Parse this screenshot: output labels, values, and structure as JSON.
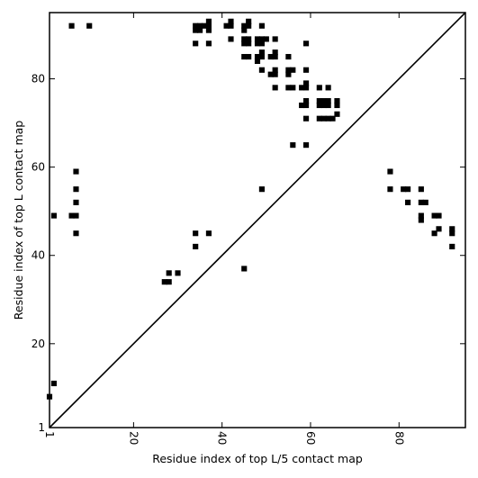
{
  "chart_data": {
    "type": "scatter",
    "title": "",
    "xlabel": "Residue index of top L/5 contact map",
    "ylabel": "Residue index of top L contact map",
    "xlim": [
      1,
      95
    ],
    "ylim": [
      1,
      95
    ],
    "x_ticks": [
      1,
      20,
      40,
      60,
      80
    ],
    "y_ticks": [
      1,
      20,
      40,
      60,
      80
    ],
    "x_tick_labels": [
      "1",
      "20",
      "40",
      "60",
      "80"
    ],
    "y_tick_labels": [
      "1",
      "20",
      "40",
      "60",
      "80"
    ],
    "x_tick_rotation": -90,
    "grid": false,
    "legend": "none",
    "diagonal": {
      "from": [
        1,
        1
      ],
      "to": [
        95,
        95
      ]
    },
    "marker": {
      "shape": "square",
      "color": "#000000"
    },
    "series": [
      {
        "name": "",
        "points": [
          [
            6,
            92
          ],
          [
            10,
            92
          ],
          [
            34,
            91
          ],
          [
            34,
            92
          ],
          [
            35,
            91
          ],
          [
            35,
            92
          ],
          [
            36,
            92
          ],
          [
            37,
            91
          ],
          [
            37,
            92
          ],
          [
            37,
            93
          ],
          [
            41,
            92
          ],
          [
            42,
            92
          ],
          [
            42,
            93
          ],
          [
            45,
            91
          ],
          [
            45,
            92
          ],
          [
            46,
            92
          ],
          [
            46,
            93
          ],
          [
            49,
            92
          ],
          [
            34,
            88
          ],
          [
            37,
            88
          ],
          [
            42,
            89
          ],
          [
            45,
            88
          ],
          [
            45,
            89
          ],
          [
            46,
            88
          ],
          [
            46,
            89
          ],
          [
            48,
            88
          ],
          [
            48,
            89
          ],
          [
            49,
            88
          ],
          [
            49,
            89
          ],
          [
            50,
            89
          ],
          [
            52,
            89
          ],
          [
            59,
            88
          ],
          [
            45,
            85
          ],
          [
            46,
            85
          ],
          [
            48,
            84
          ],
          [
            48,
            85
          ],
          [
            49,
            85
          ],
          [
            49,
            86
          ],
          [
            51,
            85
          ],
          [
            52,
            85
          ],
          [
            52,
            86
          ],
          [
            55,
            85
          ],
          [
            49,
            82
          ],
          [
            51,
            81
          ],
          [
            52,
            81
          ],
          [
            52,
            82
          ],
          [
            55,
            81
          ],
          [
            55,
            82
          ],
          [
            56,
            82
          ],
          [
            59,
            82
          ],
          [
            52,
            78
          ],
          [
            55,
            78
          ],
          [
            56,
            78
          ],
          [
            58,
            78
          ],
          [
            59,
            78
          ],
          [
            59,
            79
          ],
          [
            62,
            78
          ],
          [
            64,
            78
          ],
          [
            58,
            74
          ],
          [
            59,
            74
          ],
          [
            59,
            75
          ],
          [
            62,
            74
          ],
          [
            62,
            75
          ],
          [
            63,
            74
          ],
          [
            63,
            75
          ],
          [
            64,
            74
          ],
          [
            64,
            75
          ],
          [
            66,
            74
          ],
          [
            66,
            75
          ],
          [
            59,
            71
          ],
          [
            62,
            71
          ],
          [
            63,
            71
          ],
          [
            64,
            71
          ],
          [
            65,
            71
          ],
          [
            66,
            72
          ],
          [
            56,
            65
          ],
          [
            59,
            65
          ],
          [
            7,
            59
          ],
          [
            7,
            55
          ],
          [
            7,
            52
          ],
          [
            2,
            49
          ],
          [
            6,
            49
          ],
          [
            7,
            49
          ],
          [
            7,
            45
          ],
          [
            49,
            55
          ],
          [
            34,
            45
          ],
          [
            37,
            45
          ],
          [
            34,
            42
          ],
          [
            45,
            37
          ],
          [
            28,
            36
          ],
          [
            30,
            36
          ],
          [
            27,
            34
          ],
          [
            28,
            34
          ],
          [
            2,
            11
          ],
          [
            1,
            8
          ],
          [
            78,
            59
          ],
          [
            78,
            55
          ],
          [
            81,
            55
          ],
          [
            82,
            55
          ],
          [
            85,
            55
          ],
          [
            82,
            52
          ],
          [
            85,
            52
          ],
          [
            86,
            52
          ],
          [
            85,
            49
          ],
          [
            85,
            48
          ],
          [
            88,
            49
          ],
          [
            89,
            49
          ],
          [
            89,
            46
          ],
          [
            88,
            45
          ],
          [
            92,
            46
          ],
          [
            92,
            45
          ],
          [
            92,
            42
          ]
        ]
      }
    ]
  }
}
